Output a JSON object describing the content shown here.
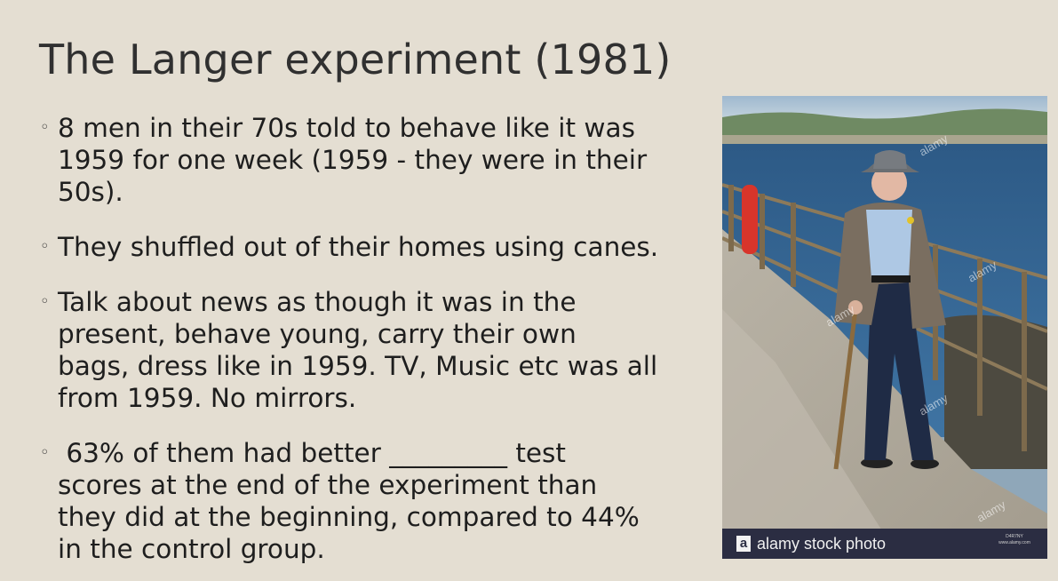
{
  "slide": {
    "title": "The Langer experiment (1981)",
    "bullet_marker": "◦",
    "bullets": [
      {
        "lines": [
          "8 men in their 70s told to behave like it was",
          "1959 for one week (1959 - they were in their",
          "50s)."
        ]
      },
      {
        "lines": [
          "They shuffled out of their homes using canes."
        ]
      },
      {
        "lines": [
          "Talk about news as though it was in the",
          "present, behave young, carry their own",
          "bags, dress like in 1959. TV, Music etc was all",
          "from 1959. No mirrors."
        ]
      },
      {
        "lines": [
          " 63% of them had better _________ test",
          "scores at the end of the experiment than",
          "they did at the beginning, compared to 44%",
          "in the control group."
        ]
      }
    ]
  },
  "photo": {
    "logo_letter": "a",
    "credit": "alamy stock photo",
    "watermark": "alamy",
    "image_id": "D4R7NY",
    "site": "www.alamy.com"
  }
}
